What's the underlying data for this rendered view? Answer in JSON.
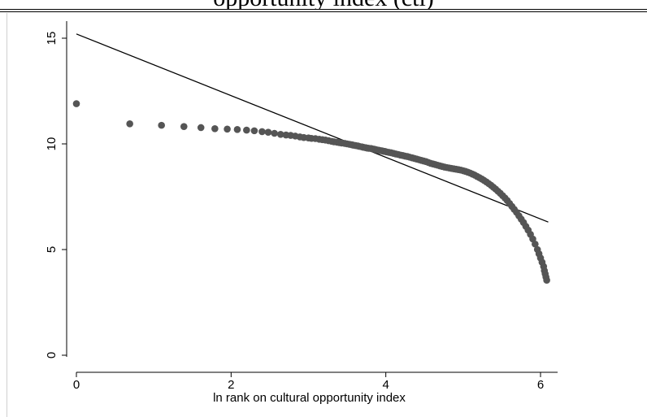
{
  "header": {
    "title_fragment": "opportunity index (cti)"
  },
  "colors": {
    "marker": "#555555",
    "fit_line": "#000000",
    "axis": "#000000",
    "background": "#ffffff"
  },
  "chart_data": {
    "type": "scatter",
    "title": "",
    "xlabel": "ln rank on cultural opportunity index",
    "ylabel": "",
    "xlim": [
      0,
      6.2
    ],
    "ylim": [
      0,
      15.5
    ],
    "xticks": [
      0,
      2,
      4,
      6
    ],
    "yticks": [
      0,
      5,
      10,
      15
    ],
    "xtick_labels": [
      "0",
      "2",
      "4",
      "6"
    ],
    "ytick_labels": [
      "0",
      "5",
      "10",
      "15"
    ],
    "grid": false,
    "legend": "none",
    "series": [
      {
        "kind": "scatter",
        "points": [
          [
            0.0,
            11.9
          ],
          [
            0.69,
            10.95
          ],
          [
            1.1,
            10.88
          ],
          [
            1.39,
            10.82
          ],
          [
            1.61,
            10.77
          ],
          [
            1.79,
            10.72
          ],
          [
            1.95,
            10.7
          ],
          [
            2.08,
            10.68
          ],
          [
            2.2,
            10.65
          ],
          [
            2.3,
            10.62
          ],
          [
            2.4,
            10.58
          ],
          [
            2.48,
            10.55
          ],
          [
            2.56,
            10.5
          ],
          [
            2.64,
            10.45
          ],
          [
            2.71,
            10.42
          ],
          [
            2.77,
            10.4
          ],
          [
            2.83,
            10.37
          ],
          [
            2.89,
            10.33
          ],
          [
            2.94,
            10.3
          ],
          [
            3.0,
            10.28
          ],
          [
            3.04,
            10.26
          ],
          [
            3.09,
            10.25
          ],
          [
            3.14,
            10.22
          ],
          [
            3.18,
            10.2
          ],
          [
            3.22,
            10.18
          ],
          [
            3.26,
            10.15
          ],
          [
            3.3,
            10.12
          ],
          [
            3.33,
            10.1
          ],
          [
            3.37,
            10.08
          ],
          [
            3.4,
            10.06
          ],
          [
            3.43,
            10.04
          ],
          [
            3.47,
            10.02
          ],
          [
            3.5,
            10.0
          ],
          [
            3.53,
            9.98
          ],
          [
            3.56,
            9.96
          ],
          [
            3.58,
            9.94
          ],
          [
            3.61,
            9.92
          ],
          [
            3.64,
            9.9
          ],
          [
            3.66,
            9.88
          ],
          [
            3.69,
            9.86
          ],
          [
            3.71,
            9.84
          ],
          [
            3.74,
            9.82
          ],
          [
            3.76,
            9.8
          ],
          [
            3.78,
            9.79
          ],
          [
            3.81,
            9.78
          ],
          [
            3.83,
            9.76
          ],
          [
            3.85,
            9.75
          ],
          [
            3.87,
            9.73
          ],
          [
            3.89,
            9.71
          ],
          [
            3.91,
            9.7
          ],
          [
            3.93,
            9.68
          ],
          [
            3.95,
            9.67
          ],
          [
            3.97,
            9.65
          ],
          [
            3.99,
            9.64
          ],
          [
            4.01,
            9.62
          ],
          [
            4.04,
            9.6
          ],
          [
            4.07,
            9.58
          ],
          [
            4.1,
            9.55
          ],
          [
            4.13,
            9.52
          ],
          [
            4.16,
            9.5
          ],
          [
            4.19,
            9.47
          ],
          [
            4.22,
            9.45
          ],
          [
            4.25,
            9.42
          ],
          [
            4.28,
            9.4
          ],
          [
            4.31,
            9.37
          ],
          [
            4.34,
            9.34
          ],
          [
            4.37,
            9.31
          ],
          [
            4.4,
            9.28
          ],
          [
            4.43,
            9.25
          ],
          [
            4.46,
            9.22
          ],
          [
            4.49,
            9.19
          ],
          [
            4.52,
            9.16
          ],
          [
            4.55,
            9.12
          ],
          [
            4.58,
            9.08
          ],
          [
            4.61,
            9.05
          ],
          [
            4.64,
            9.02
          ],
          [
            4.67,
            8.99
          ],
          [
            4.7,
            8.96
          ],
          [
            4.73,
            8.93
          ],
          [
            4.76,
            8.9
          ],
          [
            4.79,
            8.88
          ],
          [
            4.82,
            8.86
          ],
          [
            4.85,
            8.84
          ],
          [
            4.88,
            8.82
          ],
          [
            4.91,
            8.8
          ],
          [
            4.94,
            8.78
          ],
          [
            4.97,
            8.76
          ],
          [
            5.0,
            8.73
          ],
          [
            5.03,
            8.7
          ],
          [
            5.06,
            8.66
          ],
          [
            5.09,
            8.62
          ],
          [
            5.12,
            8.57
          ],
          [
            5.15,
            8.52
          ],
          [
            5.18,
            8.46
          ],
          [
            5.21,
            8.4
          ],
          [
            5.24,
            8.34
          ],
          [
            5.27,
            8.27
          ],
          [
            5.3,
            8.2
          ],
          [
            5.33,
            8.12
          ],
          [
            5.36,
            8.04
          ],
          [
            5.39,
            7.95
          ],
          [
            5.42,
            7.86
          ],
          [
            5.45,
            7.76
          ],
          [
            5.48,
            7.66
          ],
          [
            5.51,
            7.55
          ],
          [
            5.54,
            7.44
          ],
          [
            5.57,
            7.32
          ],
          [
            5.6,
            7.18
          ],
          [
            5.63,
            7.04
          ],
          [
            5.66,
            6.9
          ],
          [
            5.69,
            6.76
          ],
          [
            5.72,
            6.6
          ],
          [
            5.75,
            6.44
          ],
          [
            5.78,
            6.28
          ],
          [
            5.81,
            6.1
          ],
          [
            5.84,
            5.92
          ],
          [
            5.87,
            5.72
          ],
          [
            5.9,
            5.5
          ],
          [
            5.93,
            5.26
          ],
          [
            5.96,
            5.0
          ],
          [
            5.98,
            4.8
          ],
          [
            6.0,
            4.6
          ],
          [
            6.02,
            4.4
          ],
          [
            6.04,
            4.2
          ],
          [
            6.05,
            4.0
          ],
          [
            6.06,
            3.85
          ],
          [
            6.07,
            3.7
          ],
          [
            6.08,
            3.55
          ]
        ]
      },
      {
        "kind": "line",
        "points": [
          [
            0.0,
            15.2
          ],
          [
            6.1,
            6.3
          ]
        ]
      }
    ]
  }
}
